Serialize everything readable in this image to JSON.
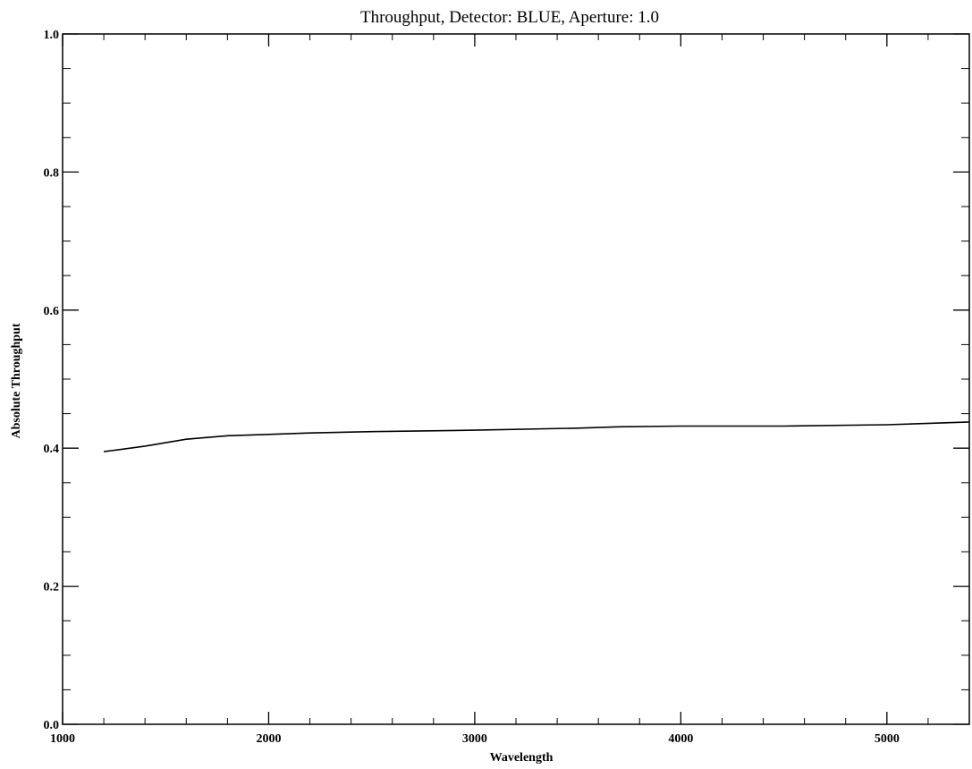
{
  "chart_data": {
    "type": "line",
    "title": "Throughput, Detector: BLUE, Aperture: 1.0",
    "xlabel": "Wavelength",
    "ylabel": "Absolute Throughput",
    "xlim": [
      1000,
      5400
    ],
    "ylim": [
      0.0,
      1.0
    ],
    "x_ticks": [
      1000,
      2000,
      3000,
      4000,
      5000
    ],
    "x_tick_labels": [
      "1000",
      "2000",
      "3000",
      "4000",
      "5000"
    ],
    "y_ticks": [
      0.0,
      0.2,
      0.4,
      0.6,
      0.8,
      1.0
    ],
    "y_tick_labels": [
      "0.0",
      "0.2",
      "0.4",
      "0.6",
      "0.8",
      "1.0"
    ],
    "grid": false,
    "series": [
      {
        "x": [
          1200,
          1400,
          1600,
          1800,
          2000,
          2200,
          2500,
          3000,
          3500,
          3700,
          4000,
          4500,
          5000,
          5400
        ],
        "y": [
          0.395,
          0.403,
          0.413,
          0.418,
          0.42,
          0.422,
          0.424,
          0.426,
          0.429,
          0.431,
          0.432,
          0.432,
          0.434,
          0.438
        ]
      }
    ]
  }
}
